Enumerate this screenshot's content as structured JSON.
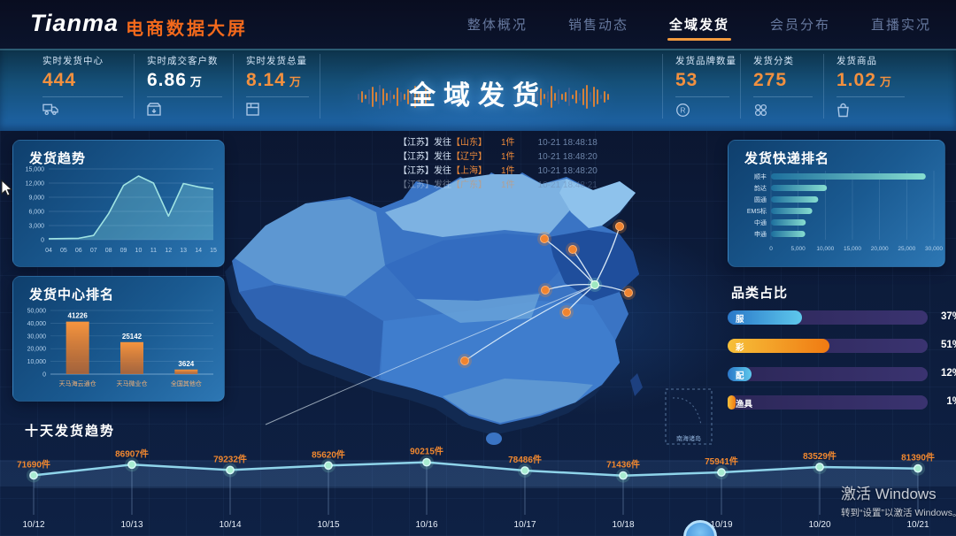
{
  "header": {
    "logo": "Tianma",
    "title": "电商数据大屏",
    "tabs": [
      {
        "label": "整体概况",
        "active": false
      },
      {
        "label": "销售动态",
        "active": false
      },
      {
        "label": "全域发货",
        "active": true
      },
      {
        "label": "会员分布",
        "active": false
      },
      {
        "label": "直播实况",
        "active": false
      }
    ]
  },
  "stats": {
    "center_title": "全域发货",
    "cells": [
      {
        "label": "实时发货中心",
        "value": "444",
        "unit": "",
        "color": "orange",
        "icon": "truck-icon"
      },
      {
        "label": "实时成交客户数",
        "value": "6.86",
        "unit": "万",
        "color": "white",
        "icon": "box-icon"
      },
      {
        "label": "实时发货总量",
        "value": "8.14",
        "unit": "万",
        "color": "orange",
        "icon": "package-icon"
      },
      {
        "label": "发货品牌数量",
        "value": "53",
        "unit": "",
        "color": "orange",
        "icon": "registered-icon"
      },
      {
        "label": "发货分类",
        "value": "275",
        "unit": "",
        "color": "orange",
        "icon": "grid-dots-icon"
      },
      {
        "label": "发货商品",
        "value": "1.02",
        "unit": "万",
        "color": "orange",
        "icon": "bag-icon"
      }
    ]
  },
  "ticker": {
    "items": [
      {
        "from": "【江苏】发往",
        "to": "【山东】",
        "count": "1件",
        "time": "10-21 18:48:18"
      },
      {
        "from": "【江苏】发往",
        "to": "【辽宁】",
        "count": "1件",
        "time": "10-21 18:48:20"
      },
      {
        "from": "【江苏】发往",
        "to": "【上海】",
        "count": "1件",
        "time": "10-21 18:48:20"
      },
      {
        "from": "【江苏】发往",
        "to": "【广东】",
        "count": "1件",
        "time": "10-21 18:48:21"
      }
    ]
  },
  "panels": {
    "trend_title": "发货趋势",
    "centers_title": "发货中心排名",
    "express_title": "发货快递排名",
    "category_title": "品类占比",
    "tenday_title": "十天发货趋势"
  },
  "map": {
    "inset_label": "南海诸岛"
  },
  "watermark": {
    "line1": "激活 Windows",
    "line2": "转到“设置”以激活 Windows。"
  },
  "chart_data": [
    {
      "id": "trend",
      "type": "area",
      "title": "发货趋势",
      "x": [
        "04",
        "05",
        "06",
        "07",
        "08",
        "09",
        "10",
        "11",
        "12",
        "13",
        "14",
        "15"
      ],
      "values": [
        200,
        250,
        300,
        900,
        5500,
        11500,
        13500,
        12000,
        5000,
        11900,
        11200,
        10700
      ],
      "ylim": [
        0,
        15000
      ],
      "yticks": [
        0,
        3000,
        6000,
        9000,
        12000,
        15000
      ],
      "line_color": "#9fe3e3"
    },
    {
      "id": "centers",
      "type": "bar",
      "title": "发货中心排名",
      "categories": [
        "天马海云通仓",
        "天马微业仓",
        "全国其他仓"
      ],
      "values": [
        41226,
        25142,
        3624
      ],
      "ylim": [
        0,
        50000
      ],
      "yticks": [
        0,
        10000,
        20000,
        30000,
        40000,
        50000
      ],
      "bar_color": "#f08a38"
    },
    {
      "id": "express",
      "type": "hbar",
      "title": "发货快递排名",
      "categories": [
        "顺丰",
        "韵达",
        "圆通",
        "EMS标",
        "中通",
        "申通"
      ],
      "values": [
        28500,
        10300,
        8700,
        7600,
        6400,
        6300
      ],
      "xlim": [
        0,
        30000
      ],
      "xticks": [
        0,
        5000,
        10000,
        15000,
        20000,
        25000,
        30000
      ],
      "bar_color_start": "#1d6f9d",
      "bar_color_end": "#86ddd0"
    },
    {
      "id": "category",
      "type": "hbar-percent",
      "title": "品类占比",
      "categories": [
        "服",
        "彩",
        "配",
        "渔具"
      ],
      "values": [
        37,
        51,
        12,
        1
      ],
      "colors": [
        "blue",
        "orange",
        "blue",
        "orange"
      ],
      "unit": "%"
    },
    {
      "id": "tenday",
      "type": "line",
      "title": "十天发货趋势",
      "x": [
        "10/12",
        "10/13",
        "10/14",
        "10/15",
        "10/16",
        "10/17",
        "10/18",
        "10/19",
        "10/20",
        "10/21"
      ],
      "values": [
        71690,
        86907,
        79232,
        85620,
        90215,
        78486,
        71436,
        75941,
        83529,
        81390
      ],
      "label_suffix": "件",
      "value_color": "#f2882f",
      "line_color": "#8fd4ea"
    }
  ]
}
